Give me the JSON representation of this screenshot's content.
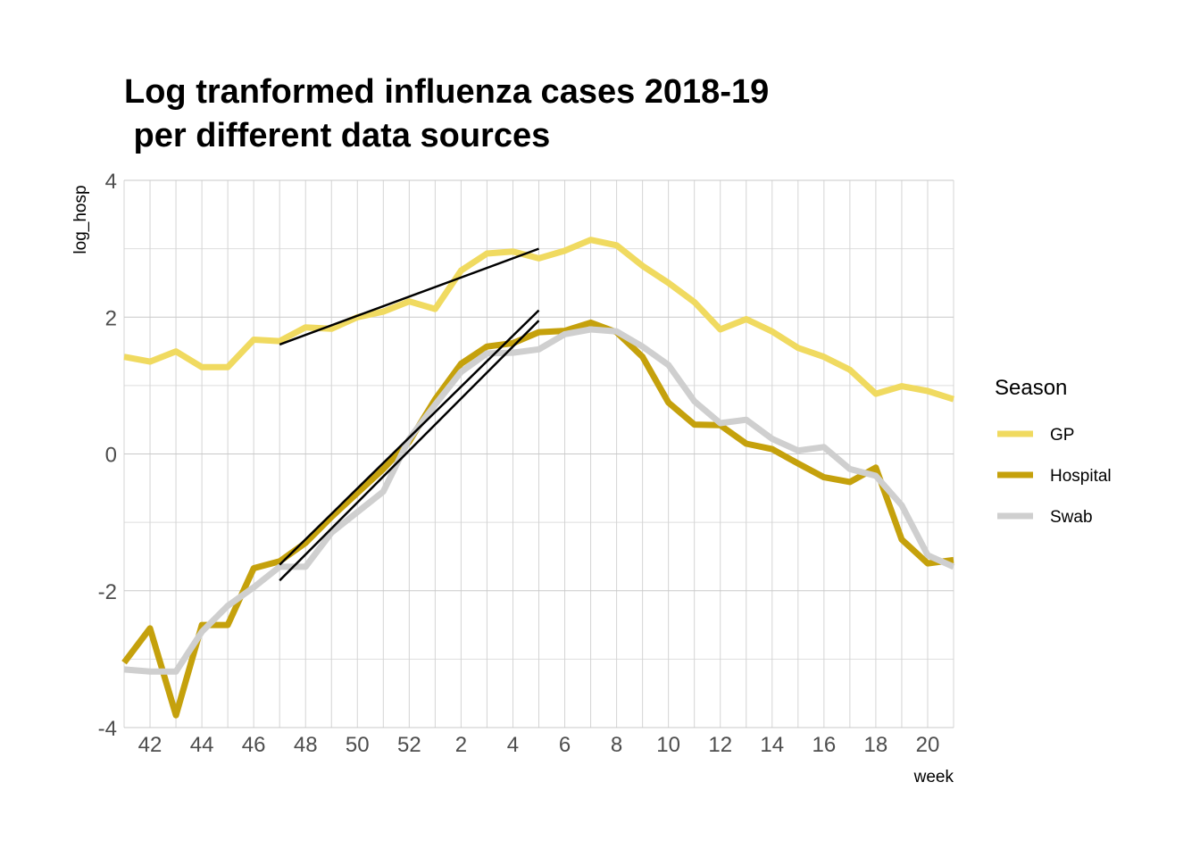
{
  "chart_data": {
    "type": "line",
    "title_lines": [
      "Log tranformed influenza cases 2018-19",
      " per different data sources"
    ],
    "xlabel": "week",
    "ylabel": "log_hosp",
    "ylim": [
      -4,
      4
    ],
    "yticks": [
      -4,
      -2,
      0,
      2,
      4
    ],
    "xticks": [
      "42",
      "44",
      "46",
      "48",
      "50",
      "52",
      "2",
      "4",
      "6",
      "8",
      "10",
      "12",
      "14",
      "16",
      "18",
      "20"
    ],
    "grid": true,
    "legend": {
      "title": "Season",
      "position": "right"
    },
    "x": [
      "41",
      "42",
      "43",
      "44",
      "45",
      "46",
      "47",
      "48",
      "49",
      "50",
      "51",
      "52",
      "1",
      "2",
      "3",
      "4",
      "5",
      "6",
      "7",
      "8",
      "9",
      "10",
      "11",
      "12",
      "13",
      "14",
      "15",
      "16",
      "17",
      "18",
      "19",
      "20",
      "21"
    ],
    "series": [
      {
        "name": "GP",
        "color": "#f0da60",
        "values": [
          1.42,
          1.35,
          1.5,
          1.27,
          1.27,
          1.67,
          1.65,
          1.85,
          1.83,
          2.0,
          2.08,
          2.23,
          2.12,
          2.68,
          2.93,
          2.96,
          2.86,
          2.97,
          3.13,
          3.05,
          2.75,
          2.5,
          2.22,
          1.82,
          1.97,
          1.79,
          1.55,
          1.42,
          1.23,
          0.88,
          0.99,
          0.92,
          0.8
        ]
      },
      {
        "name": "Hospital",
        "color": "#c5a10c",
        "values": [
          -3.05,
          -2.55,
          -3.82,
          -2.5,
          -2.5,
          -1.67,
          -1.57,
          -1.3,
          -0.92,
          -0.57,
          -0.22,
          0.18,
          0.8,
          1.32,
          1.57,
          1.62,
          1.78,
          1.8,
          1.92,
          1.78,
          1.42,
          0.75,
          0.43,
          0.42,
          0.15,
          0.07,
          -0.14,
          -0.34,
          -0.41,
          -0.2,
          -1.25,
          -1.6,
          -1.55
        ]
      },
      {
        "name": "Swab",
        "color": "#cfcfcf",
        "values": [
          -3.15,
          -3.18,
          -3.18,
          -2.6,
          -2.22,
          -1.95,
          -1.65,
          -1.65,
          -1.15,
          -0.85,
          -0.55,
          0.22,
          0.72,
          1.2,
          1.47,
          1.48,
          1.53,
          1.75,
          1.82,
          1.79,
          1.57,
          1.3,
          0.77,
          0.45,
          0.5,
          0.22,
          0.05,
          0.1,
          -0.22,
          -0.32,
          -0.75,
          -1.48,
          -1.65
        ]
      }
    ],
    "trend_lines": [
      {
        "color": "#000000",
        "from": {
          "x": "47",
          "y": 1.6
        },
        "to": {
          "x": "5",
          "y": 3.0
        }
      },
      {
        "color": "#000000",
        "from": {
          "x": "47",
          "y": -1.62
        },
        "to": {
          "x": "5",
          "y": 2.1
        }
      },
      {
        "color": "#000000",
        "from": {
          "x": "47",
          "y": -1.85
        },
        "to": {
          "x": "5",
          "y": 1.95
        }
      }
    ]
  }
}
